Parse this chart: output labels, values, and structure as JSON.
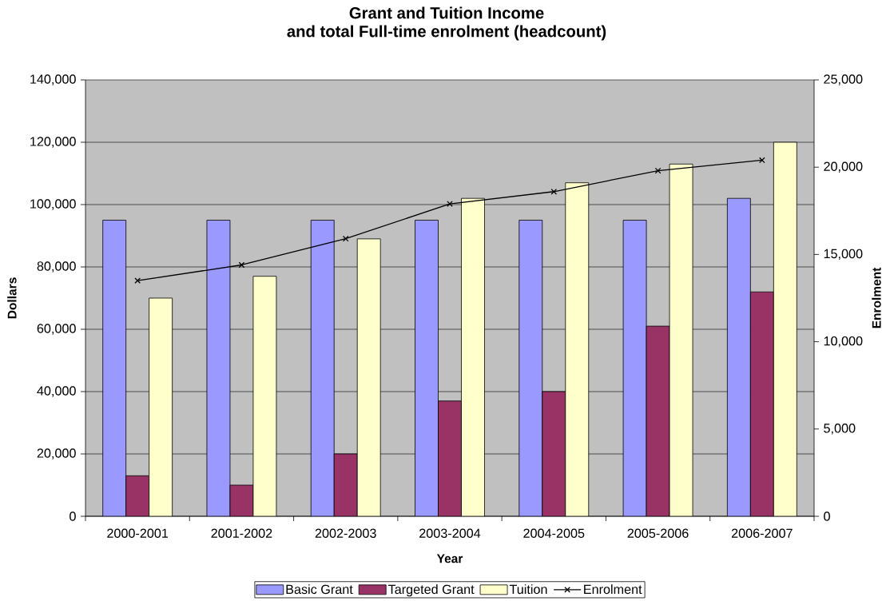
{
  "chart_data": {
    "type": "bar",
    "title": "Grant and Tuition Income",
    "subtitle": "and total Full-time enrolment (headcount)",
    "xlabel": "Year",
    "ylabel": "Dollars",
    "y2label": "Enrolment",
    "categories": [
      "2000-2001",
      "2001-2002",
      "2002-2003",
      "2003-2004",
      "2004-2005",
      "2005-2006",
      "2006-2007"
    ],
    "series": [
      {
        "name": "Basic Grant",
        "color": "#9999ff",
        "values": [
          95000,
          95000,
          95000,
          95000,
          95000,
          95000,
          102000
        ]
      },
      {
        "name": "Targeted Grant",
        "color": "#993366",
        "values": [
          13000,
          10000,
          20000,
          37000,
          40000,
          61000,
          72000
        ]
      },
      {
        "name": "Tuition",
        "color": "#ffffcc",
        "values": [
          70000,
          77000,
          89000,
          102000,
          107000,
          113000,
          120000
        ]
      },
      {
        "name": "Enrolment",
        "type": "line",
        "axis": "y2",
        "color": "#000000",
        "marker": "cross",
        "values": [
          13500,
          14400,
          15900,
          17900,
          18600,
          19800,
          20400
        ]
      }
    ],
    "ylim": [
      0,
      140000
    ],
    "yticks": [
      0,
      {
        "value": 20000,
        "label": "20,000"
      },
      {
        "value": 40000,
        "label": "40,000"
      },
      {
        "value": 60000,
        "label": "60,000"
      },
      {
        "value": 80000,
        "label": "80,000"
      },
      {
        "value": 100000,
        "label": "100,000"
      },
      {
        "value": 120000,
        "label": "120,000"
      },
      {
        "value": 140000,
        "label": "140,000"
      }
    ],
    "y2lim": [
      0,
      25000
    ],
    "y2ticks": [
      0,
      {
        "value": 5000,
        "label": "5,000"
      },
      {
        "value": 10000,
        "label": "10,000"
      },
      {
        "value": 15000,
        "label": "15,000"
      },
      {
        "value": 20000,
        "label": "20,000"
      },
      {
        "value": 25000,
        "label": "25,000"
      }
    ],
    "grid": "y",
    "legend": "bottom"
  }
}
